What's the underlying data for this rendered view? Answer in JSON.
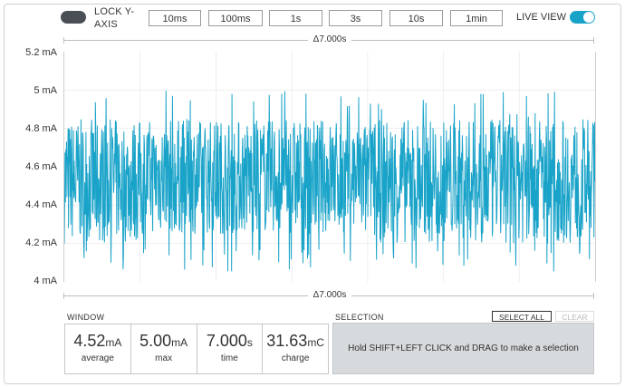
{
  "toolbar": {
    "lock_y_axis_label": "LOCK Y-AXIS",
    "lock_y_axis_on": false,
    "time_buttons": [
      "10ms",
      "100ms",
      "1s",
      "3s",
      "10s",
      "1min"
    ],
    "live_view_label": "LIVE VIEW",
    "live_view_on": true
  },
  "chart": {
    "duration_top": "Δ7.000s",
    "duration_bottom": "Δ7.000s",
    "y_ticks": [
      "5.2 mA",
      "5 mA",
      "4.8 mA",
      "4.6 mA",
      "4.4 mA",
      "4.2 mA",
      "4 mA"
    ],
    "line_color": "#1aa3c9"
  },
  "chart_data": {
    "type": "line",
    "title": "",
    "xlabel": "",
    "ylabel": "",
    "x_range": [
      0,
      7.0
    ],
    "ylim": [
      4.0,
      5.2
    ],
    "y_unit": "mA",
    "grid": true,
    "series": [
      {
        "band_min": 4.05,
        "band_max": 5.0,
        "typical_low": 4.2,
        "typical_high": 4.85,
        "mean": 4.52
      }
    ]
  },
  "window": {
    "section_label": "WINDOW",
    "stats": [
      {
        "value": "4.52",
        "unit": "mA",
        "label": "average"
      },
      {
        "value": "5.00",
        "unit": "mA",
        "label": "max"
      },
      {
        "value": "7.000",
        "unit": "s",
        "label": "time"
      },
      {
        "value": "31.63",
        "unit": "mC",
        "label": "charge"
      }
    ]
  },
  "selection": {
    "section_label": "SELECTION",
    "select_all_label": "SELECT ALL",
    "clear_label": "CLEAR",
    "hint": "Hold SHIFT+LEFT CLICK and DRAG to make a selection"
  }
}
